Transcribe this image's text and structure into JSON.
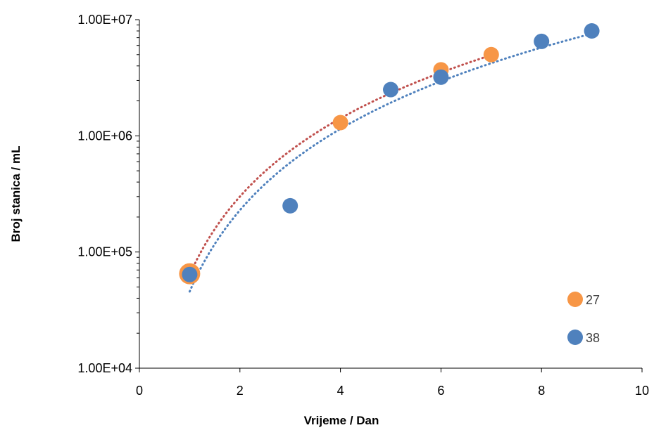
{
  "chart_data": {
    "type": "scatter",
    "xlabel": "Vrijeme / Dan",
    "ylabel": "Broj stanica / mL",
    "xlim": [
      0,
      10
    ],
    "ylim": [
      10000,
      10000000
    ],
    "yscale": "log",
    "x_ticks": [
      "0",
      "2",
      "4",
      "6",
      "8",
      "10"
    ],
    "y_ticks": [
      "1.00E+04",
      "1.00E+05",
      "1.00E+06",
      "1.00E+07"
    ],
    "grid": false,
    "legend_position": "bottom-right",
    "series": [
      {
        "name": "27",
        "color": "#F79646",
        "x": [
          1,
          4,
          6,
          7
        ],
        "y": [
          65000,
          1300000,
          3700000,
          5000000
        ],
        "trendline": {
          "type": "power",
          "color": "#C0504D",
          "x_range": [
            1,
            7
          ]
        }
      },
      {
        "name": "38",
        "color": "#4F81BD",
        "x": [
          1,
          3,
          5,
          6,
          8,
          9
        ],
        "y": [
          64000,
          250000,
          2500000,
          3200000,
          6500000,
          8000000
        ],
        "trendline": {
          "type": "power",
          "color": "#4F81BD",
          "x_range": [
            1,
            9
          ]
        }
      }
    ]
  }
}
